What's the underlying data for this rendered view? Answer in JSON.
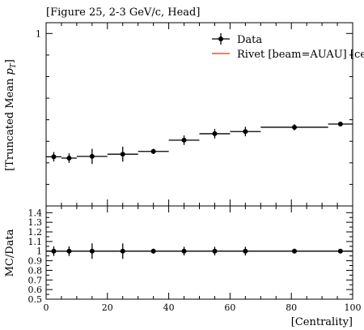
{
  "chart_data": [
    {
      "type": "scatter",
      "title": "[Figure 25, 2-3 GeV/c, Head]",
      "ylabel": "[Truncated Mean p_T]",
      "ylabel_parts": [
        "[Truncated Mean ",
        "p",
        "T",
        "]"
      ],
      "xlabel": "",
      "xlim": [
        0,
        100
      ],
      "ylim": [
        0.2,
        1.05
      ],
      "yticks": [
        {
          "value": 1,
          "label": "1"
        }
      ],
      "ytick_minor": [
        0.3,
        0.4,
        0.5,
        0.6,
        0.7,
        0.8,
        0.9
      ],
      "legend": {
        "placement": "top-right",
        "entries": [
          {
            "label": "Data",
            "style": "marker",
            "color": "#000000"
          },
          {
            "label": "Rivet [beam=AUAU] [cen",
            "style": "line",
            "color": "#e8572e"
          }
        ]
      },
      "series": [
        {
          "name": "Data",
          "points": [
            {
              "x": 2.5,
              "y": 0.428,
              "xerr": 2.5,
              "yerr": 0.022
            },
            {
              "x": 7.5,
              "y": 0.422,
              "xerr": 2.5,
              "yerr": 0.022
            },
            {
              "x": 15,
              "y": 0.43,
              "xerr": 5,
              "yerr": 0.035
            },
            {
              "x": 25,
              "y": 0.44,
              "xerr": 5,
              "yerr": 0.035
            },
            {
              "x": 35,
              "y": 0.453,
              "xerr": 5,
              "yerr": 0.012
            },
            {
              "x": 45,
              "y": 0.505,
              "xerr": 5,
              "yerr": 0.022
            },
            {
              "x": 55,
              "y": 0.535,
              "xerr": 5,
              "yerr": 0.022
            },
            {
              "x": 65,
              "y": 0.545,
              "xerr": 5,
              "yerr": 0.022
            },
            {
              "x": 81,
              "y": 0.565,
              "xerr": 11,
              "yerr": 0.014
            },
            {
              "x": 96,
              "y": 0.58,
              "xerr": 4,
              "yerr": 0.004
            }
          ]
        }
      ]
    },
    {
      "type": "scatter",
      "ylabel": "MC/Data",
      "xlabel": "[Centrality]",
      "xlim": [
        0,
        100
      ],
      "ylim": [
        0.5,
        1.47
      ],
      "xticks": [
        {
          "value": 0,
          "label": "0"
        },
        {
          "value": 20,
          "label": "20"
        },
        {
          "value": 40,
          "label": "40"
        },
        {
          "value": 60,
          "label": "60"
        },
        {
          "value": 80,
          "label": "80"
        },
        {
          "value": 100,
          "label": "100"
        }
      ],
      "yticks": [
        {
          "value": 0.5,
          "label": "0.5"
        },
        {
          "value": 0.6,
          "label": "0.6"
        },
        {
          "value": 0.7,
          "label": "0.7"
        },
        {
          "value": 0.8,
          "label": "0.8"
        },
        {
          "value": 0.9,
          "label": "0.9"
        },
        {
          "value": 1.0,
          "label": "1"
        },
        {
          "value": 1.1,
          "label": "1.1"
        },
        {
          "value": 1.2,
          "label": "1.2"
        },
        {
          "value": 1.3,
          "label": "1.3"
        },
        {
          "value": 1.4,
          "label": "1.4"
        }
      ],
      "reference_line": 1.0,
      "series": [
        {
          "name": "",
          "points": [
            {
              "x": 2.5,
              "y": 1.0,
              "xerr": 2.5,
              "yerr": 0.05
            },
            {
              "x": 7.5,
              "y": 1.0,
              "xerr": 2.5,
              "yerr": 0.05
            },
            {
              "x": 15,
              "y": 1.0,
              "xerr": 5,
              "yerr": 0.08
            },
            {
              "x": 25,
              "y": 1.0,
              "xerr": 5,
              "yerr": 0.08
            },
            {
              "x": 35,
              "y": 1.0,
              "xerr": 5,
              "yerr": 0.025
            },
            {
              "x": 45,
              "y": 1.0,
              "xerr": 5,
              "yerr": 0.045
            },
            {
              "x": 55,
              "y": 1.0,
              "xerr": 5,
              "yerr": 0.045
            },
            {
              "x": 65,
              "y": 1.0,
              "xerr": 5,
              "yerr": 0.045
            },
            {
              "x": 81,
              "y": 1.0,
              "xerr": 11,
              "yerr": 0.025
            },
            {
              "x": 96,
              "y": 1.0,
              "xerr": 4,
              "yerr": 0.008
            }
          ]
        }
      ]
    }
  ]
}
